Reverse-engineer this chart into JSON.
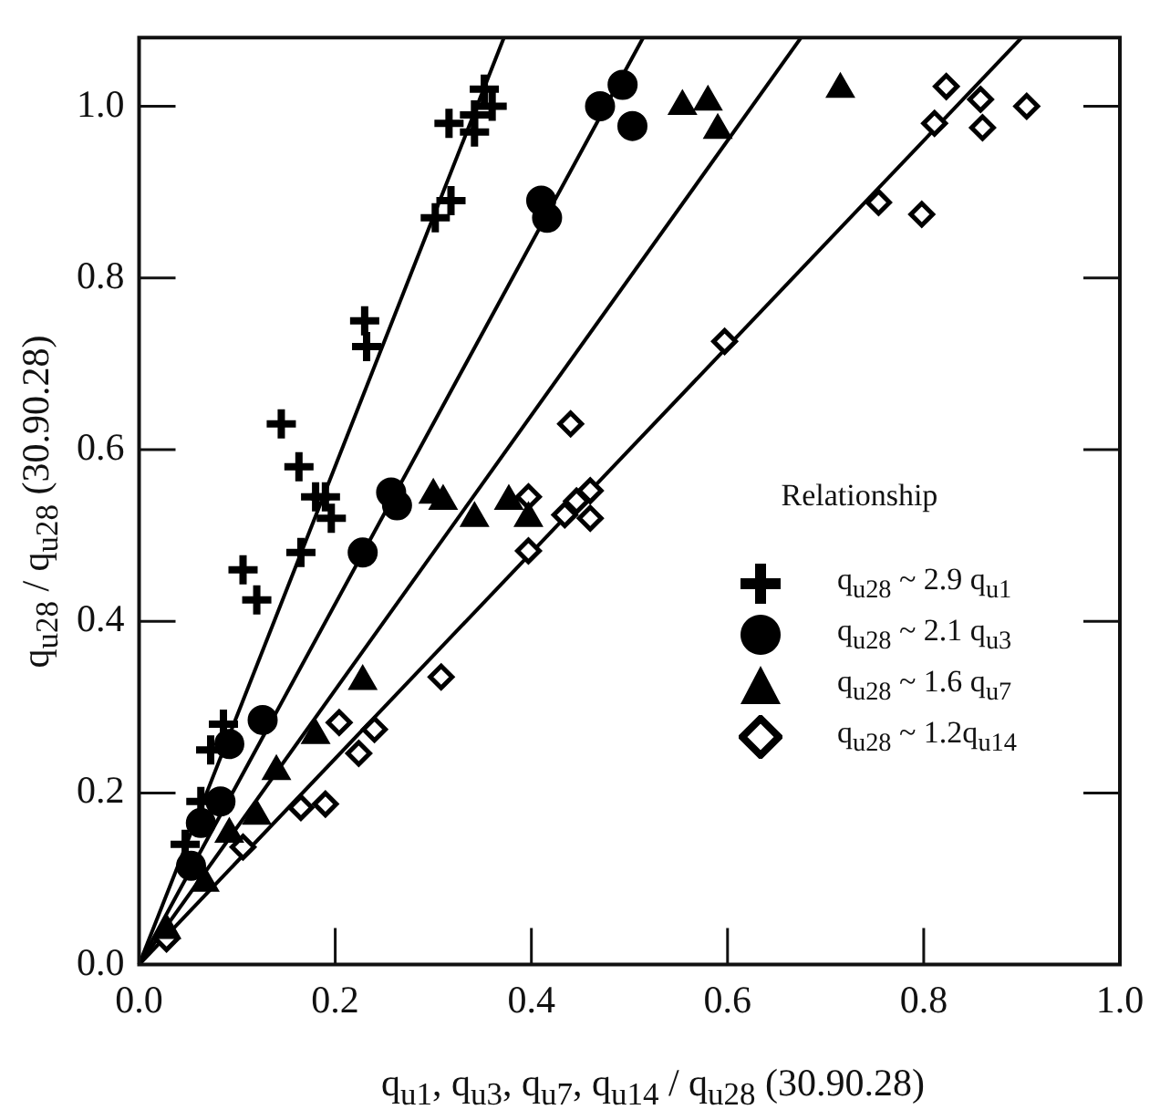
{
  "chart_data": {
    "type": "scatter",
    "xlabel": "q$_{u1}$,  q$_{u3}$,  q$_{u7}$,  q$_{u14}$  / q$_{u28}$ (30.90.28)",
    "ylabel": "q$_{u28}$ / q$_{u28}$ (30.90.28)",
    "legend_title": "Relationship",
    "legend": "right",
    "grid": false,
    "xlim": [
      0,
      1.0
    ],
    "ylim": [
      0,
      1.08
    ],
    "xticks": [
      {
        "value": 0,
        "label": "0.0"
      },
      {
        "value": 0.2,
        "label": "0.2"
      },
      {
        "value": 0.4,
        "label": "0.4"
      },
      {
        "value": 0.6,
        "label": "0.6"
      },
      {
        "value": 0.8,
        "label": "0.8"
      },
      {
        "value": 1.0,
        "label": "1.0"
      }
    ],
    "yticks": [
      {
        "value": 0,
        "label": "0.0"
      },
      {
        "value": 0.2,
        "label": "0.2"
      },
      {
        "value": 0.4,
        "label": "0.4"
      },
      {
        "value": 0.6,
        "label": "0.6"
      },
      {
        "value": 0.8,
        "label": "0.8"
      },
      {
        "value": 1.0,
        "label": "1.0"
      }
    ],
    "series": [
      {
        "name": "q$_{u28}$ ~ 2.9 q$_{u1}$",
        "color": "#000000",
        "marker": "cross",
        "x": [
          0.352,
          0.36,
          0.342,
          0.316,
          0.342,
          0.318,
          0.302,
          0.23,
          0.232,
          0.145,
          0.163,
          0.18,
          0.19,
          0.196,
          0.165,
          0.106,
          0.12,
          0.086,
          0.073,
          0.063,
          0.047
        ],
        "values": [
          1.02,
          1.0,
          0.99,
          0.98,
          0.97,
          0.89,
          0.87,
          0.75,
          0.72,
          0.63,
          0.58,
          0.545,
          0.545,
          0.52,
          0.48,
          0.46,
          0.425,
          0.28,
          0.25,
          0.19,
          0.14
        ]
      },
      {
        "name": "q$_{u28}$ ~ 2.1 q$_{u3}$",
        "color": "#000000",
        "marker": "circle",
        "x": [
          0.493,
          0.47,
          0.503,
          0.41,
          0.416,
          0.257,
          0.263,
          0.228,
          0.126,
          0.092,
          0.083,
          0.063,
          0.053
        ],
        "values": [
          1.025,
          1.0,
          0.977,
          0.89,
          0.87,
          0.55,
          0.535,
          0.48,
          0.285,
          0.257,
          0.19,
          0.165,
          0.115
        ]
      },
      {
        "name": "q$_{u28}$ ~ 1.6 q$_{u7}$",
        "color": "#000000",
        "marker": "triangle",
        "x": [
          0.554,
          0.58,
          0.59,
          0.715,
          0.3,
          0.31,
          0.342,
          0.377,
          0.397,
          0.228,
          0.18,
          0.14,
          0.12,
          0.092,
          0.067,
          0.028
        ],
        "values": [
          1.0,
          1.005,
          0.972,
          1.02,
          0.547,
          0.54,
          0.52,
          0.54,
          0.52,
          0.33,
          0.267,
          0.225,
          0.173,
          0.152,
          0.095,
          0.04
        ]
      },
      {
        "name": "q$_{u28}$ ~ 1.2q$_{u14}$",
        "color": "#000000",
        "marker": "diamond",
        "x": [
          0.823,
          0.858,
          0.905,
          0.811,
          0.86,
          0.754,
          0.798,
          0.597,
          0.44,
          0.46,
          0.446,
          0.434,
          0.46,
          0.397,
          0.397,
          0.308,
          0.24,
          0.224,
          0.204,
          0.19,
          0.165,
          0.106,
          0.028
        ],
        "values": [
          1.023,
          1.008,
          1.0,
          0.98,
          0.975,
          0.888,
          0.874,
          0.726,
          0.63,
          0.552,
          0.54,
          0.524,
          0.52,
          0.545,
          0.482,
          0.335,
          0.274,
          0.246,
          0.282,
          0.187,
          0.183,
          0.137,
          0.03
        ]
      },
      {
        "type": "line",
        "color": "#000000",
        "marker": "none",
        "x": [
          0,
          0.372
        ],
        "values": [
          0,
          1.08
        ]
      },
      {
        "type": "line",
        "color": "#000000",
        "marker": "none",
        "x": [
          0,
          0.514
        ],
        "values": [
          0,
          1.08
        ]
      },
      {
        "type": "line",
        "color": "#000000",
        "marker": "none",
        "x": [
          0,
          0.675
        ],
        "values": [
          0,
          1.08
        ]
      },
      {
        "type": "line",
        "color": "#000000",
        "marker": "none",
        "x": [
          0,
          0.9
        ],
        "values": [
          0,
          1.08
        ]
      }
    ]
  }
}
